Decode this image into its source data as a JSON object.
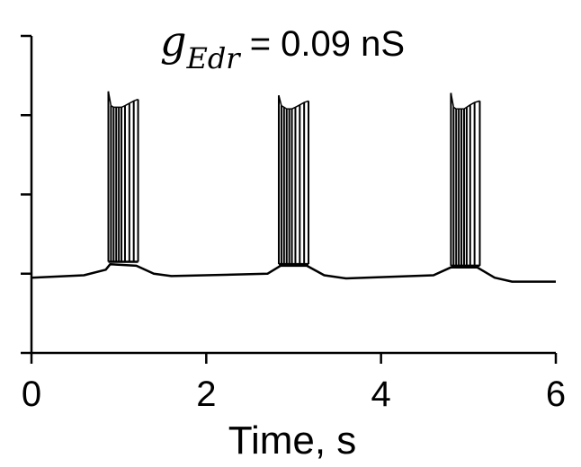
{
  "chart_data": {
    "type": "line",
    "title": {
      "variable": "g",
      "subscript": "Edr",
      "rest": " = 0.09 nS"
    },
    "xlabel": "Time, s",
    "ylabel": "",
    "xlim": [
      0,
      6
    ],
    "ylim": [
      0,
      4
    ],
    "x_ticks": [
      0,
      2,
      4,
      6
    ],
    "x_tick_labels": [
      "0",
      "2",
      "4",
      "6"
    ],
    "y_ticks": [
      0,
      1,
      2,
      3,
      4
    ],
    "grid": false,
    "line_color": "#000000",
    "baseline": [
      {
        "t": 0.0,
        "v": 0.95
      },
      {
        "t": 0.6,
        "v": 0.98
      },
      {
        "t": 0.85,
        "v": 1.05
      },
      {
        "t": 0.9,
        "v": 1.12
      },
      {
        "t": 1.2,
        "v": 1.1
      },
      {
        "t": 1.4,
        "v": 1.0
      },
      {
        "t": 1.6,
        "v": 0.97
      },
      {
        "t": 2.7,
        "v": 1.0
      },
      {
        "t": 2.85,
        "v": 1.1
      },
      {
        "t": 3.15,
        "v": 1.1
      },
      {
        "t": 3.35,
        "v": 0.98
      },
      {
        "t": 3.6,
        "v": 0.94
      },
      {
        "t": 4.6,
        "v": 0.98
      },
      {
        "t": 4.8,
        "v": 1.08
      },
      {
        "t": 5.1,
        "v": 1.08
      },
      {
        "t": 5.3,
        "v": 0.95
      },
      {
        "t": 5.5,
        "v": 0.9
      },
      {
        "t": 6.0,
        "v": 0.9
      }
    ],
    "bursts": [
      {
        "start": 0.88,
        "end": 1.22,
        "spike_times": [
          0.88,
          0.91,
          0.94,
          0.97,
          1.0,
          1.03,
          1.07,
          1.12,
          1.17,
          1.22
        ],
        "spike_peaks": [
          3.3,
          3.12,
          3.1,
          3.1,
          3.1,
          3.1,
          3.12,
          3.15,
          3.18,
          3.2
        ],
        "base_level": 1.15
      },
      {
        "start": 2.83,
        "end": 3.17,
        "spike_times": [
          2.83,
          2.86,
          2.89,
          2.92,
          2.95,
          2.98,
          3.02,
          3.07,
          3.12,
          3.17
        ],
        "spike_peaks": [
          3.25,
          3.12,
          3.1,
          3.08,
          3.08,
          3.08,
          3.1,
          3.13,
          3.16,
          3.18
        ],
        "base_level": 1.12
      },
      {
        "start": 4.8,
        "end": 5.13,
        "spike_times": [
          4.8,
          4.83,
          4.86,
          4.89,
          4.92,
          4.95,
          4.98,
          5.02,
          5.07,
          5.13
        ],
        "spike_peaks": [
          3.28,
          3.1,
          3.08,
          3.08,
          3.08,
          3.08,
          3.1,
          3.13,
          3.16,
          3.18
        ],
        "base_level": 1.1
      }
    ]
  }
}
